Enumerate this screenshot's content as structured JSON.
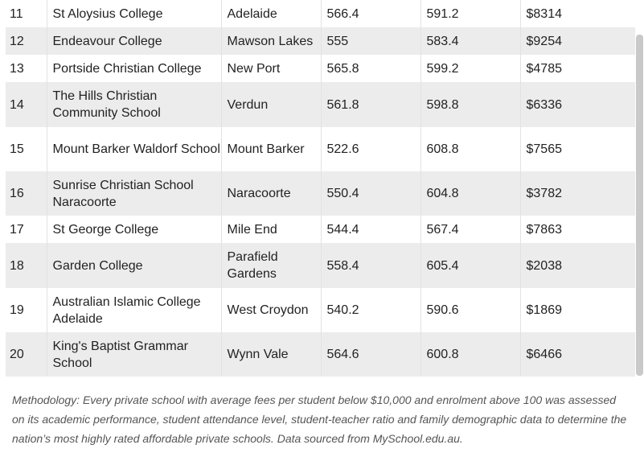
{
  "rows": [
    {
      "rank": "11",
      "school": "St Aloysius College",
      "location": "Adelaide",
      "score_a": "566.4",
      "score_b": "591.2",
      "fees": "$8314"
    },
    {
      "rank": "12",
      "school": "Endeavour College",
      "location": "Mawson Lakes",
      "score_a": "555",
      "score_b": "583.4",
      "fees": "$9254"
    },
    {
      "rank": "13",
      "school": "Portside Christian College",
      "location": "New Port",
      "score_a": "565.8",
      "score_b": "599.2",
      "fees": "$4785"
    },
    {
      "rank": "14",
      "school": "The Hills Christian Community School",
      "location": "Verdun",
      "score_a": "561.8",
      "score_b": "598.8",
      "fees": "$6336"
    },
    {
      "rank": "15",
      "school": "Mount Barker Waldorf School",
      "location": "Mount Barker",
      "score_a": "522.6",
      "score_b": "608.8",
      "fees": "$7565"
    },
    {
      "rank": "16",
      "school": "Sunrise Christian School Naracoorte",
      "location": "Naracoorte",
      "score_a": "550.4",
      "score_b": "604.8",
      "fees": "$3782"
    },
    {
      "rank": "17",
      "school": "St George College",
      "location": "Mile End",
      "score_a": "544.4",
      "score_b": "567.4",
      "fees": "$7863"
    },
    {
      "rank": "18",
      "school": "Garden College",
      "location": "Parafield Gardens",
      "score_a": "558.4",
      "score_b": "605.4",
      "fees": "$2038"
    },
    {
      "rank": "19",
      "school": "Australian Islamic College Adelaide",
      "location": "West Croydon",
      "score_a": "540.2",
      "score_b": "590.6",
      "fees": "$1869"
    },
    {
      "rank": "20",
      "school": "King's Baptist Grammar School",
      "location": "Wynn Vale",
      "score_a": "564.6",
      "score_b": "600.8",
      "fees": "$6466"
    }
  ],
  "methodology": "Methodology: Every private school with average fees per student below $10,000 and enrolment above 100 was assessed on its academic performance, student attendance level, student-teacher ratio and family demographic data to determine the nation’s most highly rated affordable private schools. Data sourced from MySchool.edu.au.",
  "colors": {
    "row_alt": "#ececec",
    "row": "#ffffff",
    "border": "#e2e2e2",
    "scrollbar": "#c9c9c9"
  }
}
